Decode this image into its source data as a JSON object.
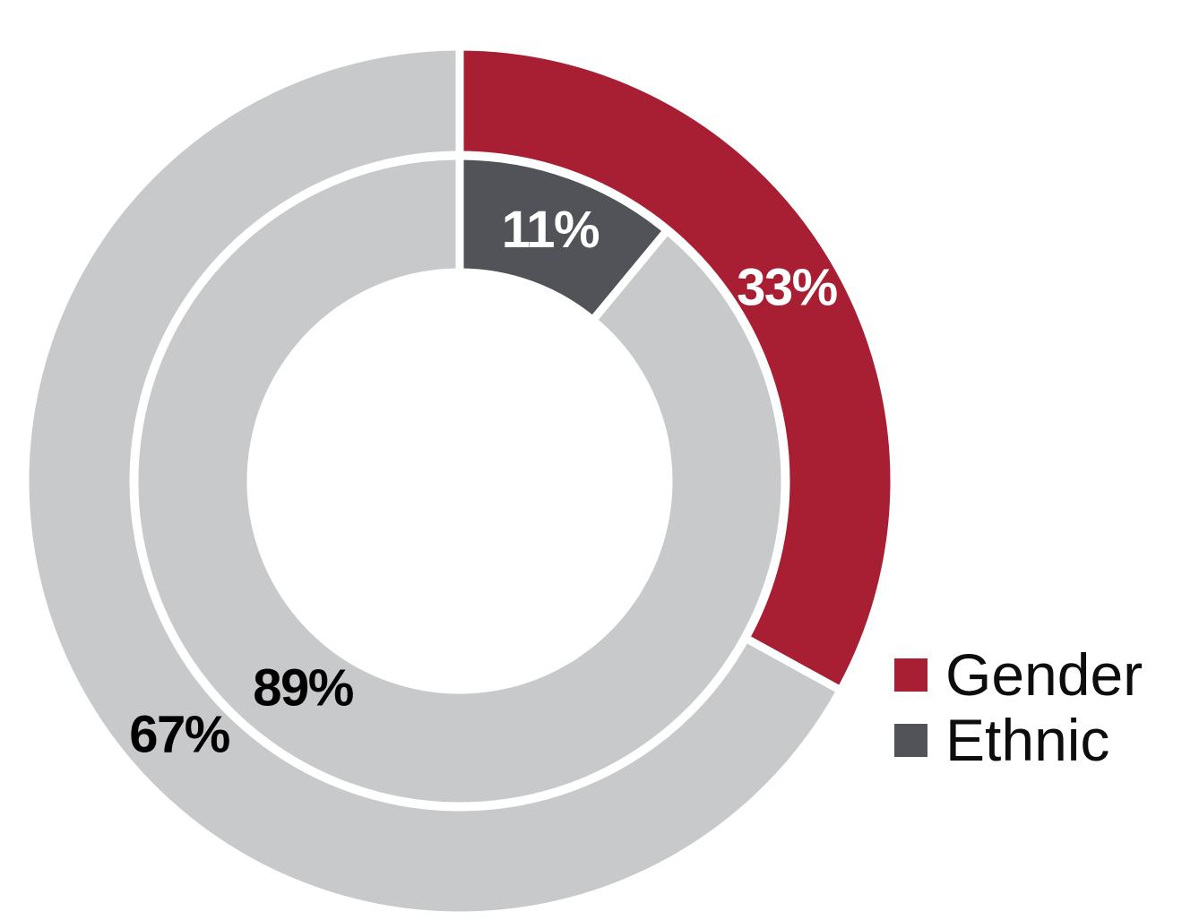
{
  "chart_data": {
    "type": "pie",
    "subtype": "nested-donut",
    "title": "",
    "units": "percent",
    "grid": false,
    "legend_position": "right-bottom",
    "rings": [
      {
        "name": "Gender",
        "position": "outer",
        "segments": [
          {
            "value": 33,
            "label": "33%",
            "color": "#A81E32",
            "label_color": "#FFFFFF"
          },
          {
            "value": 67,
            "label": "67%",
            "color": "#C8C9CB",
            "label_color": "#000000"
          }
        ]
      },
      {
        "name": "Ethnic",
        "position": "inner",
        "segments": [
          {
            "value": 11,
            "label": "11%",
            "color": "#515359",
            "label_color": "#FFFFFF"
          },
          {
            "value": 89,
            "label": "89%",
            "color": "#C8C9CB",
            "label_color": "#000000"
          }
        ]
      }
    ],
    "legend": {
      "items": [
        {
          "label": "Gender",
          "color": "#A81E32"
        },
        {
          "label": "Ethnic",
          "color": "#515359"
        }
      ]
    },
    "separator_color": "#FFFFFF"
  }
}
